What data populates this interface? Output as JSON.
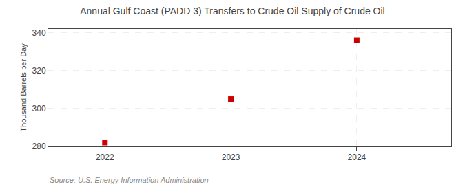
{
  "chart_data": {
    "type": "scatter",
    "title": "Annual Gulf Coast (PADD 3) Transfers to Crude Oil Supply of Crude Oil",
    "ylabel": "Thousand Barrels per Day",
    "annotations": [
      "Source: U.S. Energy Information Administration"
    ],
    "x": [
      2022,
      2023,
      2024
    ],
    "values": [
      282,
      305,
      336
    ],
    "color": "#cc0000",
    "marker": "square",
    "xlim": [
      2021.55,
      2024.75
    ],
    "xticks": [
      2022,
      2023,
      2024
    ],
    "ylim": [
      280,
      342
    ],
    "yticks": [
      280,
      300,
      320,
      340
    ],
    "grid": true
  }
}
